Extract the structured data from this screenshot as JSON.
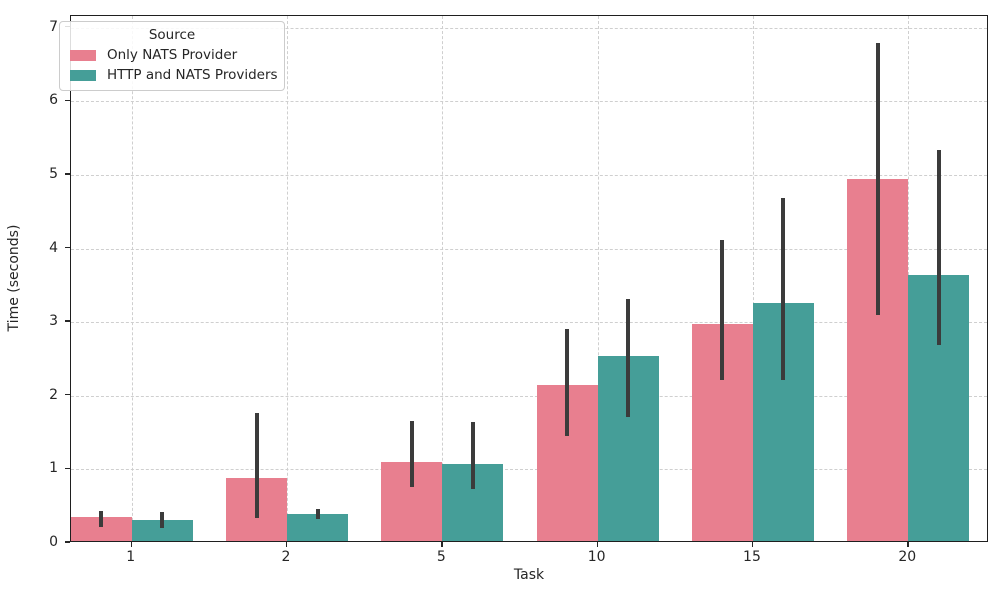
{
  "chart_data": {
    "type": "bar",
    "title": "",
    "xlabel": "Task",
    "ylabel": "Time (seconds)",
    "categories": [
      "1",
      "2",
      "5",
      "10",
      "15",
      "20"
    ],
    "series": [
      {
        "name": "Only NATS Provider",
        "color": "#e87f8f",
        "values": [
          0.33,
          0.86,
          1.08,
          2.12,
          2.95,
          4.92
        ],
        "error_ranges": [
          [
            0.22,
            0.44
          ],
          [
            0.34,
            1.77
          ],
          [
            0.76,
            1.66
          ],
          [
            1.46,
            2.91
          ],
          [
            2.21,
            4.12
          ],
          [
            3.1,
            6.79
          ]
        ]
      },
      {
        "name": "HTTP and NATS Providers",
        "color": "#459e98",
        "values": [
          0.29,
          0.37,
          1.05,
          2.52,
          3.23,
          3.61
        ],
        "error_ranges": [
          [
            0.2,
            0.42
          ],
          [
            0.33,
            0.46
          ],
          [
            0.73,
            1.65
          ],
          [
            1.71,
            3.31
          ],
          [
            2.21,
            4.69
          ],
          [
            2.69,
            5.34
          ]
        ]
      }
    ],
    "legend": {
      "title": "Source",
      "position": "upper left"
    },
    "yticks": [
      0,
      1,
      2,
      3,
      4,
      5,
      6,
      7
    ],
    "ylim": [
      0,
      7.16
    ],
    "grid": "dashed-both-axes",
    "error_bar_color": "#3b3b3b",
    "grid_color": "#cfcfcf"
  }
}
